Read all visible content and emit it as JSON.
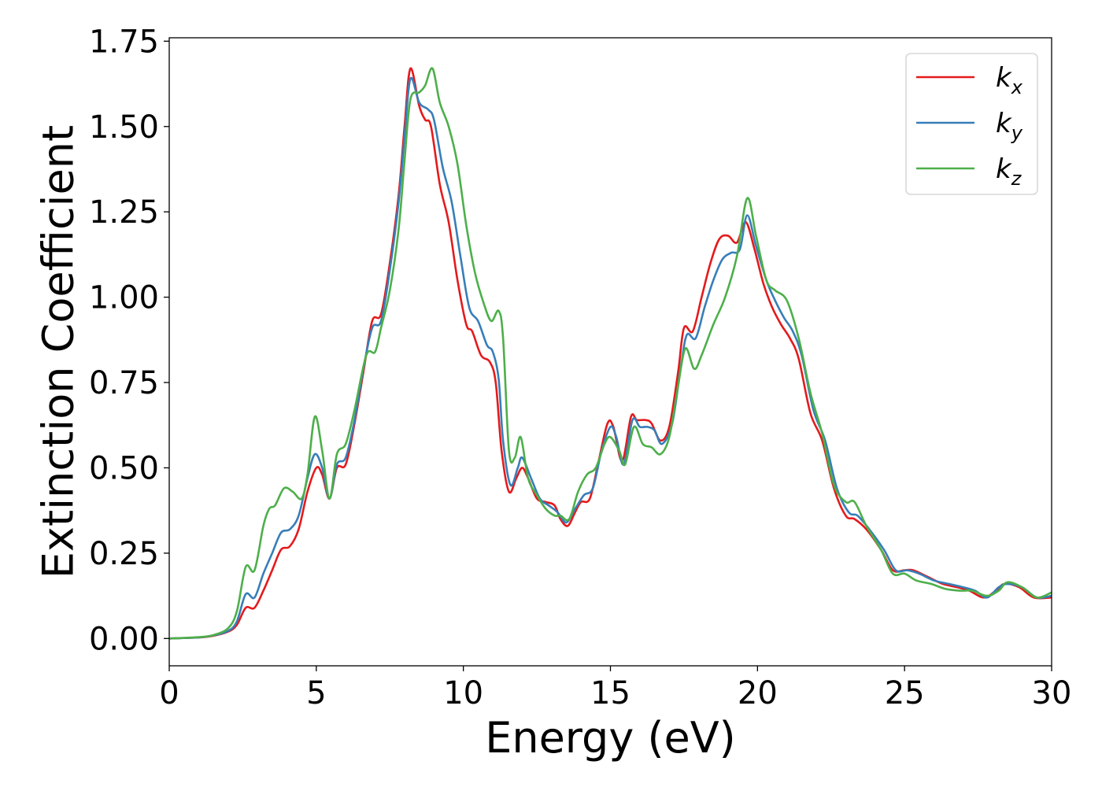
{
  "chart_data": {
    "type": "line",
    "title": "",
    "xlabel": "Energy (eV)",
    "ylabel": "Extinction Coefficient",
    "xlim": [
      0,
      30
    ],
    "ylim": [
      -0.08,
      1.76
    ],
    "xticks": [
      0,
      5,
      10,
      15,
      20,
      25,
      30
    ],
    "xtick_labels": [
      "0",
      "5",
      "10",
      "15",
      "20",
      "25",
      "30"
    ],
    "yticks": [
      0,
      0.25,
      0.5,
      0.75,
      1.0,
      1.25,
      1.5,
      1.75
    ],
    "ytick_labels": [
      "0.00",
      "0.25",
      "0.50",
      "0.75",
      "1.00",
      "1.25",
      "1.50",
      "1.75"
    ],
    "grid": false,
    "legend": {
      "position": "top-right"
    },
    "series": [
      {
        "name": "k",
        "subscript": "x",
        "color": "#e41a1c",
        "points": [
          [
            0,
            0.0
          ],
          [
            1,
            0.003
          ],
          [
            1.5,
            0.008
          ],
          [
            2,
            0.02
          ],
          [
            2.3,
            0.04
          ],
          [
            2.6,
            0.09
          ],
          [
            2.9,
            0.09
          ],
          [
            3.2,
            0.14
          ],
          [
            3.5,
            0.2
          ],
          [
            3.8,
            0.26
          ],
          [
            4.1,
            0.27
          ],
          [
            4.4,
            0.32
          ],
          [
            4.7,
            0.43
          ],
          [
            5.0,
            0.5
          ],
          [
            5.2,
            0.48
          ],
          [
            5.45,
            0.41
          ],
          [
            5.7,
            0.5
          ],
          [
            6.0,
            0.51
          ],
          [
            6.3,
            0.63
          ],
          [
            6.6,
            0.78
          ],
          [
            6.9,
            0.93
          ],
          [
            7.2,
            0.95
          ],
          [
            7.5,
            1.1
          ],
          [
            7.8,
            1.3
          ],
          [
            8.0,
            1.5
          ],
          [
            8.2,
            1.67
          ],
          [
            8.5,
            1.56
          ],
          [
            8.7,
            1.52
          ],
          [
            8.9,
            1.5
          ],
          [
            9.2,
            1.33
          ],
          [
            9.5,
            1.22
          ],
          [
            9.8,
            1.05
          ],
          [
            10.1,
            0.92
          ],
          [
            10.3,
            0.9
          ],
          [
            10.6,
            0.83
          ],
          [
            10.9,
            0.81
          ],
          [
            11.1,
            0.75
          ],
          [
            11.3,
            0.55
          ],
          [
            11.55,
            0.43
          ],
          [
            11.8,
            0.47
          ],
          [
            12.0,
            0.5
          ],
          [
            12.2,
            0.47
          ],
          [
            12.5,
            0.41
          ],
          [
            12.8,
            0.4
          ],
          [
            13.1,
            0.39
          ],
          [
            13.3,
            0.35
          ],
          [
            13.55,
            0.33
          ],
          [
            13.8,
            0.37
          ],
          [
            14.0,
            0.4
          ],
          [
            14.3,
            0.41
          ],
          [
            14.6,
            0.52
          ],
          [
            14.9,
            0.63
          ],
          [
            15.1,
            0.62
          ],
          [
            15.4,
            0.52
          ],
          [
            15.7,
            0.65
          ],
          [
            15.9,
            0.64
          ],
          [
            16.2,
            0.64
          ],
          [
            16.4,
            0.63
          ],
          [
            16.7,
            0.58
          ],
          [
            17.0,
            0.62
          ],
          [
            17.3,
            0.78
          ],
          [
            17.5,
            0.91
          ],
          [
            17.8,
            0.9
          ],
          [
            18.1,
            1.0
          ],
          [
            18.4,
            1.1
          ],
          [
            18.7,
            1.17
          ],
          [
            19.0,
            1.18
          ],
          [
            19.3,
            1.16
          ],
          [
            19.6,
            1.22
          ],
          [
            19.9,
            1.14
          ],
          [
            20.2,
            1.04
          ],
          [
            20.5,
            0.97
          ],
          [
            20.8,
            0.92
          ],
          [
            21.1,
            0.88
          ],
          [
            21.4,
            0.82
          ],
          [
            21.8,
            0.66
          ],
          [
            22.2,
            0.58
          ],
          [
            22.6,
            0.44
          ],
          [
            23.0,
            0.36
          ],
          [
            23.3,
            0.35
          ],
          [
            23.7,
            0.32
          ],
          [
            24.2,
            0.26
          ],
          [
            24.6,
            0.2
          ],
          [
            25.0,
            0.2
          ],
          [
            25.3,
            0.2
          ],
          [
            25.8,
            0.18
          ],
          [
            26.3,
            0.16
          ],
          [
            26.8,
            0.15
          ],
          [
            27.2,
            0.14
          ],
          [
            27.7,
            0.12
          ],
          [
            28.1,
            0.14
          ],
          [
            28.4,
            0.16
          ],
          [
            28.9,
            0.15
          ],
          [
            29.4,
            0.12
          ],
          [
            30,
            0.12
          ]
        ]
      },
      {
        "name": "k",
        "subscript": "y",
        "color": "#377eb8",
        "points": [
          [
            0,
            0.0
          ],
          [
            1,
            0.003
          ],
          [
            1.5,
            0.009
          ],
          [
            2,
            0.022
          ],
          [
            2.3,
            0.05
          ],
          [
            2.6,
            0.13
          ],
          [
            2.9,
            0.12
          ],
          [
            3.2,
            0.19
          ],
          [
            3.5,
            0.25
          ],
          [
            3.8,
            0.31
          ],
          [
            4.1,
            0.32
          ],
          [
            4.4,
            0.36
          ],
          [
            4.7,
            0.47
          ],
          [
            4.95,
            0.54
          ],
          [
            5.2,
            0.5
          ],
          [
            5.45,
            0.41
          ],
          [
            5.7,
            0.51
          ],
          [
            6.0,
            0.53
          ],
          [
            6.3,
            0.64
          ],
          [
            6.6,
            0.79
          ],
          [
            6.9,
            0.91
          ],
          [
            7.2,
            0.93
          ],
          [
            7.5,
            1.08
          ],
          [
            7.8,
            1.28
          ],
          [
            8.0,
            1.47
          ],
          [
            8.2,
            1.64
          ],
          [
            8.5,
            1.57
          ],
          [
            8.8,
            1.55
          ],
          [
            9.0,
            1.52
          ],
          [
            9.3,
            1.38
          ],
          [
            9.6,
            1.28
          ],
          [
            9.9,
            1.12
          ],
          [
            10.2,
            0.97
          ],
          [
            10.5,
            0.93
          ],
          [
            10.8,
            0.86
          ],
          [
            11.0,
            0.84
          ],
          [
            11.2,
            0.76
          ],
          [
            11.35,
            0.58
          ],
          [
            11.6,
            0.45
          ],
          [
            11.85,
            0.5
          ],
          [
            12.0,
            0.53
          ],
          [
            12.3,
            0.47
          ],
          [
            12.6,
            0.41
          ],
          [
            12.9,
            0.39
          ],
          [
            13.2,
            0.37
          ],
          [
            13.5,
            0.34
          ],
          [
            13.8,
            0.38
          ],
          [
            14.1,
            0.42
          ],
          [
            14.4,
            0.44
          ],
          [
            14.7,
            0.55
          ],
          [
            15.0,
            0.62
          ],
          [
            15.2,
            0.59
          ],
          [
            15.45,
            0.51
          ],
          [
            15.75,
            0.64
          ],
          [
            16.0,
            0.62
          ],
          [
            16.25,
            0.62
          ],
          [
            16.5,
            0.61
          ],
          [
            16.75,
            0.57
          ],
          [
            17.1,
            0.63
          ],
          [
            17.4,
            0.8
          ],
          [
            17.6,
            0.89
          ],
          [
            17.9,
            0.88
          ],
          [
            18.2,
            0.97
          ],
          [
            18.5,
            1.05
          ],
          [
            18.8,
            1.11
          ],
          [
            19.1,
            1.13
          ],
          [
            19.4,
            1.14
          ],
          [
            19.65,
            1.24
          ],
          [
            19.95,
            1.15
          ],
          [
            20.3,
            1.05
          ],
          [
            20.6,
            0.99
          ],
          [
            20.9,
            0.94
          ],
          [
            21.2,
            0.9
          ],
          [
            21.5,
            0.83
          ],
          [
            21.9,
            0.67
          ],
          [
            22.3,
            0.58
          ],
          [
            22.7,
            0.44
          ],
          [
            23.1,
            0.37
          ],
          [
            23.4,
            0.36
          ],
          [
            23.8,
            0.32
          ],
          [
            24.3,
            0.26
          ],
          [
            24.7,
            0.2
          ],
          [
            25.1,
            0.2
          ],
          [
            25.5,
            0.19
          ],
          [
            26.0,
            0.17
          ],
          [
            26.5,
            0.16
          ],
          [
            27.0,
            0.15
          ],
          [
            27.4,
            0.14
          ],
          [
            27.8,
            0.12
          ],
          [
            28.2,
            0.15
          ],
          [
            28.5,
            0.16
          ],
          [
            29.0,
            0.15
          ],
          [
            29.5,
            0.12
          ],
          [
            30,
            0.125
          ]
        ]
      },
      {
        "name": "k",
        "subscript": "z",
        "color": "#4daf4a",
        "points": [
          [
            0,
            0.0
          ],
          [
            1,
            0.004
          ],
          [
            1.5,
            0.01
          ],
          [
            2,
            0.03
          ],
          [
            2.3,
            0.08
          ],
          [
            2.6,
            0.21
          ],
          [
            2.9,
            0.2
          ],
          [
            3.2,
            0.33
          ],
          [
            3.4,
            0.38
          ],
          [
            3.6,
            0.39
          ],
          [
            3.9,
            0.44
          ],
          [
            4.2,
            0.43
          ],
          [
            4.5,
            0.41
          ],
          [
            4.7,
            0.48
          ],
          [
            4.95,
            0.65
          ],
          [
            5.2,
            0.55
          ],
          [
            5.45,
            0.41
          ],
          [
            5.7,
            0.54
          ],
          [
            6.0,
            0.57
          ],
          [
            6.3,
            0.67
          ],
          [
            6.7,
            0.83
          ],
          [
            7.0,
            0.84
          ],
          [
            7.2,
            0.91
          ],
          [
            7.5,
            1.02
          ],
          [
            7.8,
            1.2
          ],
          [
            8.0,
            1.4
          ],
          [
            8.2,
            1.58
          ],
          [
            8.5,
            1.6
          ],
          [
            8.7,
            1.62
          ],
          [
            8.95,
            1.67
          ],
          [
            9.2,
            1.57
          ],
          [
            9.5,
            1.5
          ],
          [
            9.8,
            1.39
          ],
          [
            10.1,
            1.21
          ],
          [
            10.4,
            1.07
          ],
          [
            10.7,
            0.98
          ],
          [
            10.95,
            0.93
          ],
          [
            11.2,
            0.96
          ],
          [
            11.35,
            0.88
          ],
          [
            11.55,
            0.55
          ],
          [
            11.75,
            0.53
          ],
          [
            11.95,
            0.59
          ],
          [
            12.2,
            0.47
          ],
          [
            12.5,
            0.42
          ],
          [
            12.8,
            0.38
          ],
          [
            13.1,
            0.36
          ],
          [
            13.3,
            0.36
          ],
          [
            13.6,
            0.35
          ],
          [
            13.9,
            0.43
          ],
          [
            14.2,
            0.48
          ],
          [
            14.5,
            0.5
          ],
          [
            14.8,
            0.57
          ],
          [
            15.0,
            0.59
          ],
          [
            15.3,
            0.55
          ],
          [
            15.5,
            0.51
          ],
          [
            15.8,
            0.62
          ],
          [
            16.1,
            0.57
          ],
          [
            16.4,
            0.56
          ],
          [
            16.7,
            0.54
          ],
          [
            17.0,
            0.59
          ],
          [
            17.3,
            0.74
          ],
          [
            17.55,
            0.85
          ],
          [
            17.85,
            0.79
          ],
          [
            18.1,
            0.83
          ],
          [
            18.5,
            0.92
          ],
          [
            18.9,
            1.0
          ],
          [
            19.3,
            1.12
          ],
          [
            19.65,
            1.29
          ],
          [
            19.95,
            1.18
          ],
          [
            20.3,
            1.05
          ],
          [
            20.6,
            1.02
          ],
          [
            21.0,
            0.99
          ],
          [
            21.4,
            0.88
          ],
          [
            21.8,
            0.72
          ],
          [
            22.2,
            0.6
          ],
          [
            22.6,
            0.45
          ],
          [
            23.0,
            0.4
          ],
          [
            23.3,
            0.4
          ],
          [
            23.7,
            0.33
          ],
          [
            24.2,
            0.26
          ],
          [
            24.6,
            0.19
          ],
          [
            25.0,
            0.19
          ],
          [
            25.4,
            0.17
          ],
          [
            25.9,
            0.16
          ],
          [
            26.4,
            0.145
          ],
          [
            26.9,
            0.14
          ],
          [
            27.3,
            0.14
          ],
          [
            27.8,
            0.125
          ],
          [
            28.2,
            0.14
          ],
          [
            28.5,
            0.165
          ],
          [
            29.0,
            0.15
          ],
          [
            29.5,
            0.12
          ],
          [
            30,
            0.135
          ]
        ]
      }
    ]
  }
}
